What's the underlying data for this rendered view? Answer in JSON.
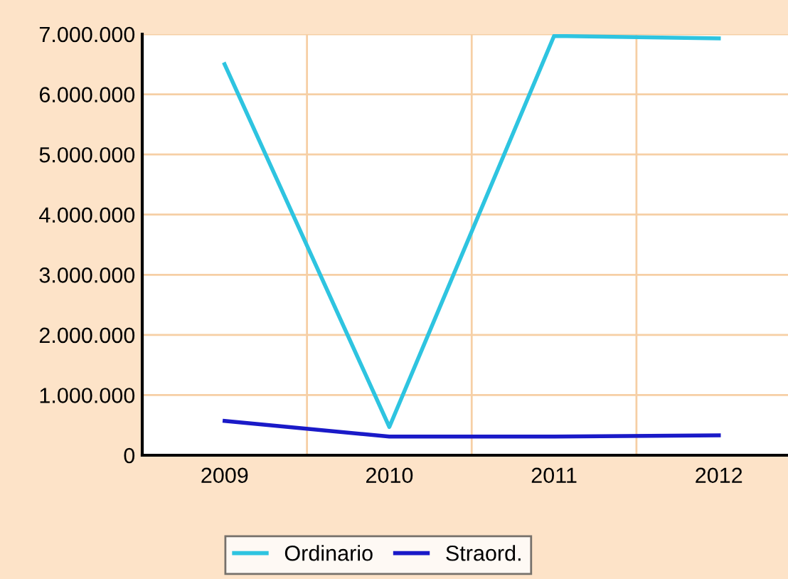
{
  "chart_data": {
    "type": "line",
    "categories": [
      "2009",
      "2010",
      "2011",
      "2012"
    ],
    "series": [
      {
        "name": "Ordinario",
        "color": "#2ec4e0",
        "values": [
          6500000,
          470000,
          6970000,
          6930000
        ]
      },
      {
        "name": "Straord.",
        "color": "#1a1ac8",
        "values": [
          570000,
          310000,
          310000,
          330000
        ]
      }
    ],
    "ylim": [
      0,
      7000000
    ],
    "yticks": [
      {
        "value": 0,
        "label": "0"
      },
      {
        "value": 1000000,
        "label": "1.000.000"
      },
      {
        "value": 2000000,
        "label": "2.000.000"
      },
      {
        "value": 3000000,
        "label": "3.000.000"
      },
      {
        "value": 4000000,
        "label": "4.000.000"
      },
      {
        "value": 5000000,
        "label": "5.000.000"
      },
      {
        "value": 6000000,
        "label": "6.000.000"
      },
      {
        "value": 7000000,
        "label": "7.000.000"
      }
    ],
    "grid": true,
    "legend": "bottom",
    "marker": "none",
    "line_style": "solid"
  }
}
